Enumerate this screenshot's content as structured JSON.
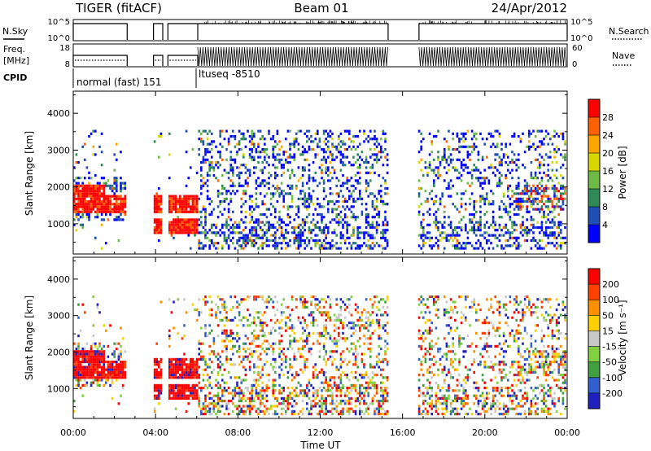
{
  "header": {
    "radar": "TIGER (fitACF)",
    "beam": "Beam 01",
    "date": "24/Apr/2012"
  },
  "panels": {
    "nsky": {
      "left_label": "N.Sky",
      "right_label": "N.Search",
      "left_ticks": [
        "10^5",
        "10^0"
      ],
      "right_ticks": [
        "10^5",
        "10^0"
      ]
    },
    "freq": {
      "left_label_1": "Freq.",
      "left_label_2": "[MHz]",
      "right_label": "Nave",
      "left_ticks": [
        "18",
        "8"
      ],
      "right_ticks": [
        "60",
        "0"
      ]
    },
    "cpid": {
      "label": "CPID",
      "segments": [
        "normal (fast) 151",
        "ltuseq -8510"
      ]
    }
  },
  "chart_data": [
    {
      "type": "heatmap",
      "name": "power",
      "ylabel": "Slant Range [km]",
      "xlabel": "",
      "yticks": [
        1000,
        2000,
        3000,
        4000
      ],
      "ylim": [
        180,
        4600
      ],
      "colorbar_label": "Power [dB]",
      "colorbar_ticks": [
        "28",
        "24",
        "20",
        "16",
        "12",
        "8",
        "4"
      ],
      "colors": [
        "#0000ff",
        "#1f4fb5",
        "#2e8b57",
        "#6dbb45",
        "#d8d800",
        "#ffa500",
        "#ff6000",
        "#ff0000"
      ]
    },
    {
      "type": "heatmap",
      "name": "velocity",
      "ylabel": "Slant Range [km]",
      "xlabel": "Time UT",
      "yticks": [
        1000,
        2000,
        3000,
        4000
      ],
      "ylim": [
        180,
        4600
      ],
      "xticks": [
        "00:00",
        "04:00",
        "08:00",
        "12:00",
        "16:00",
        "20:00",
        "00:00"
      ],
      "colorbar_label": "Velocity [m s⁻¹]",
      "colorbar_ticks": [
        "200",
        "100",
        "50",
        "15",
        "-15",
        "-50",
        "-100",
        "-200"
      ],
      "colors": [
        "#2020c0",
        "#3060d0",
        "#40a040",
        "#80d040",
        "#c8c8c8",
        "#ffd000",
        "#ff9000",
        "#ff4000",
        "#ff0000"
      ]
    }
  ]
}
